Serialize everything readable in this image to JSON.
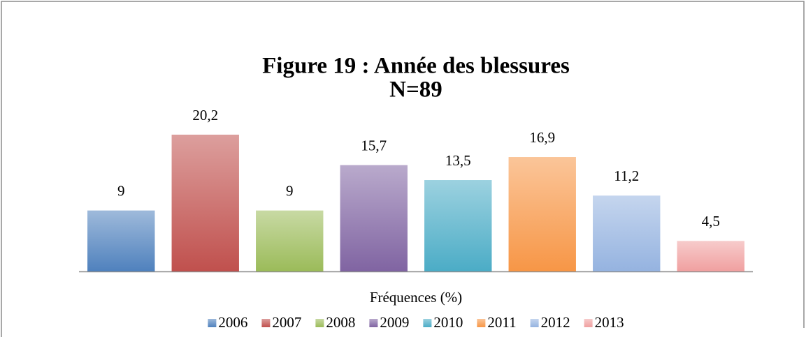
{
  "chart_data": {
    "type": "bar",
    "title": "Figure 19 : Année des blessures",
    "subtitle": "N=89",
    "categories": [
      "Fréquences (%)"
    ],
    "legend": "bottom",
    "series": [
      {
        "name": "2006",
        "color": "#4f81bd",
        "values": [
          9
        ],
        "value_labels": [
          "9"
        ]
      },
      {
        "name": "2007",
        "color": "#c0504d",
        "values": [
          20.2
        ],
        "value_labels": [
          "20,2"
        ]
      },
      {
        "name": "2008",
        "color": "#9bbb59",
        "values": [
          9
        ],
        "value_labels": [
          "9"
        ]
      },
      {
        "name": "2009",
        "color": "#8064a2",
        "values": [
          15.7
        ],
        "value_labels": [
          "15,7"
        ]
      },
      {
        "name": "2010",
        "color": "#4bacc6",
        "values": [
          13.5
        ],
        "value_labels": [
          "13,5"
        ]
      },
      {
        "name": "2011",
        "color": "#f79646",
        "values": [
          16.9
        ],
        "value_labels": [
          "16,9"
        ]
      },
      {
        "name": "2012",
        "color": "#95b3e0",
        "values": [
          11.2
        ],
        "value_labels": [
          "11,2"
        ]
      },
      {
        "name": "2013",
        "color": "#f0a0a0",
        "values": [
          4.5
        ],
        "value_labels": [
          "4,5"
        ]
      }
    ]
  }
}
